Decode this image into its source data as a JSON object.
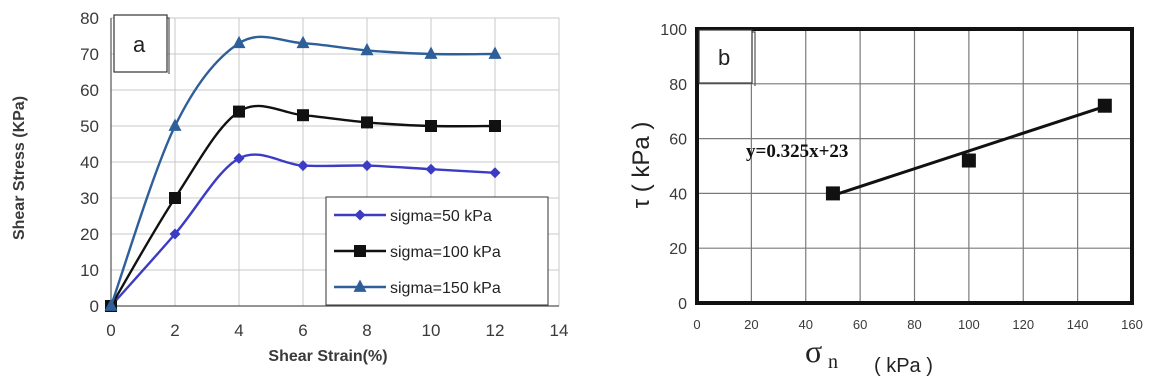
{
  "chart_data": [
    {
      "type": "line",
      "panel_label": "a",
      "xlabel": "Shear Strain(%)",
      "ylabel": "Shear Stress (KPa)",
      "xlim": [
        0,
        14
      ],
      "ylim": [
        0,
        80
      ],
      "xticks": [
        0,
        2,
        4,
        6,
        8,
        10,
        12,
        14
      ],
      "yticks": [
        0,
        10,
        20,
        30,
        40,
        50,
        60,
        70,
        80
      ],
      "grid": true,
      "legend_position": "bottom-right",
      "series": [
        {
          "name": "sigma=50 kPa",
          "color": "#3b3bc4",
          "marker": "diamond",
          "x": [
            0,
            2,
            4,
            6,
            8,
            10,
            12
          ],
          "y": [
            0,
            20,
            41,
            39,
            39,
            38,
            37
          ]
        },
        {
          "name": "sigma=100 kPa",
          "color": "#111111",
          "marker": "square",
          "x": [
            0,
            2,
            4,
            6,
            8,
            10,
            12
          ],
          "y": [
            0,
            30,
            54,
            53,
            51,
            50,
            50
          ]
        },
        {
          "name": "sigma=150 kPa",
          "color": "#2e5f98",
          "marker": "triangle",
          "x": [
            0,
            2,
            4,
            6,
            8,
            10,
            12
          ],
          "y": [
            0,
            50,
            73,
            73,
            71,
            70,
            70
          ]
        }
      ]
    },
    {
      "type": "scatter",
      "panel_label": "b",
      "xlabel_symbol": "σ",
      "xlabel_subscript": "n",
      "xlabel_unit": "( kPa )",
      "ylabel": "τ ( kPa )",
      "xlim": [
        0,
        160
      ],
      "ylim": [
        0,
        100
      ],
      "xticks": [
        0,
        20,
        40,
        60,
        80,
        100,
        120,
        140,
        160
      ],
      "yticks": [
        0,
        20,
        40,
        60,
        80,
        100
      ],
      "grid": true,
      "points": {
        "x": [
          50,
          100,
          150
        ],
        "y": [
          40,
          52,
          72
        ],
        "color": "#111111",
        "marker": "square"
      },
      "trendline": {
        "equation": "y=0.325x+23",
        "slope": 0.325,
        "intercept": 23,
        "x_range": [
          50,
          150
        ],
        "color": "#111111"
      }
    }
  ]
}
